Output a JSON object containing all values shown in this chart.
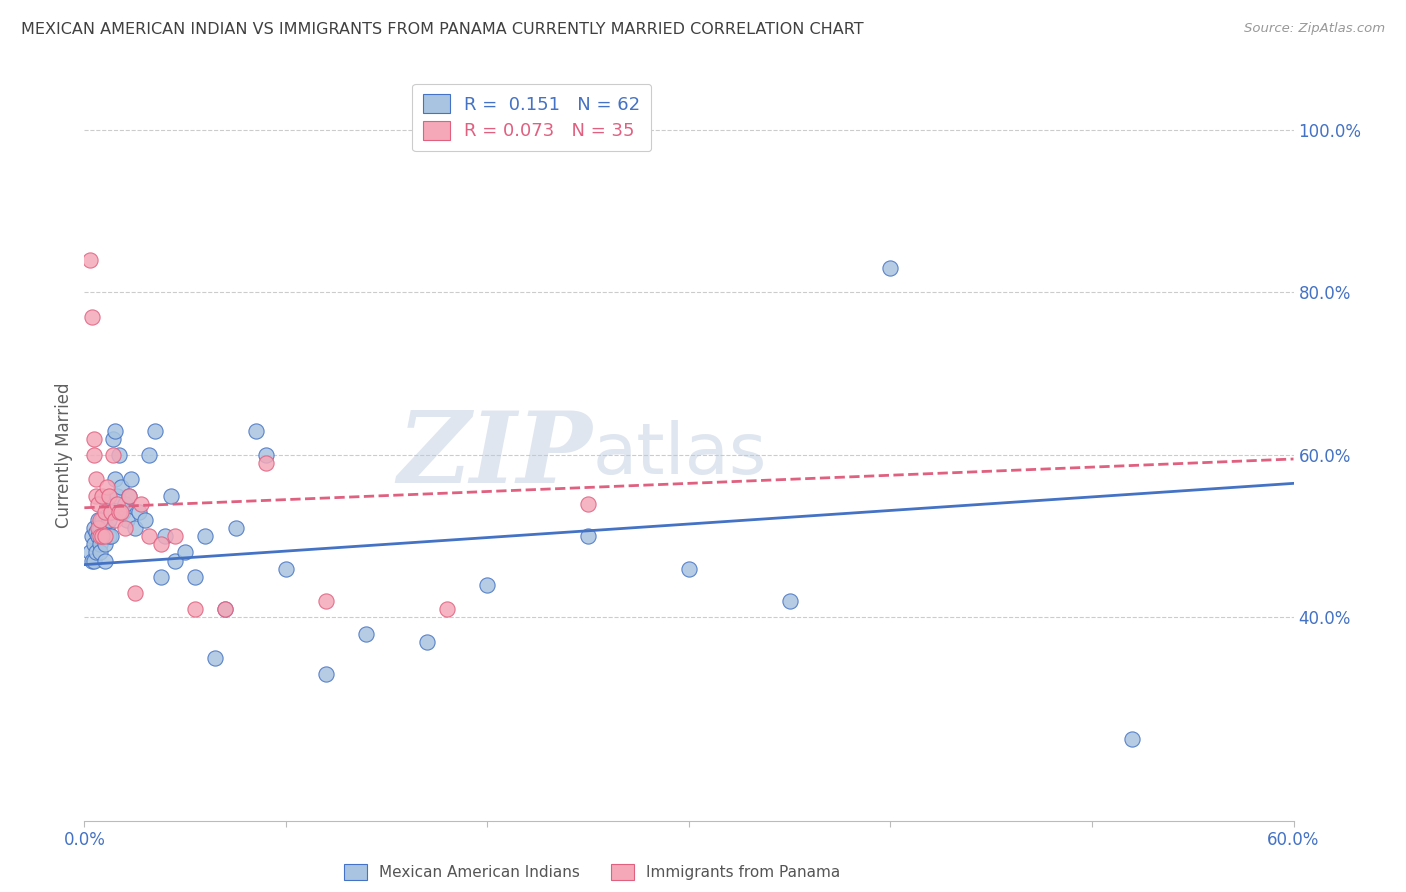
{
  "title": "MEXICAN AMERICAN INDIAN VS IMMIGRANTS FROM PANAMA CURRENTLY MARRIED CORRELATION CHART",
  "source": "Source: ZipAtlas.com",
  "ylabel": "Currently Married",
  "xlim": [
    0.0,
    0.6
  ],
  "ylim": [
    0.15,
    1.05
  ],
  "xticks": [
    0.0,
    0.1,
    0.2,
    0.3,
    0.4,
    0.5,
    0.6
  ],
  "xticklabels": [
    "0.0%",
    "",
    "",
    "",
    "",
    "",
    "60.0%"
  ],
  "yticks_right": [
    0.4,
    0.6,
    0.8,
    1.0
  ],
  "ytick_right_labels": [
    "40.0%",
    "60.0%",
    "80.0%",
    "100.0%"
  ],
  "legend_blue_r": "0.151",
  "legend_blue_n": "62",
  "legend_pink_r": "0.073",
  "legend_pink_n": "35",
  "legend_label_blue": "Mexican American Indians",
  "legend_label_pink": "Immigrants from Panama",
  "blue_color": "#a8c4e0",
  "pink_color": "#f4a8b8",
  "blue_line_color": "#4472c4",
  "pink_line_color": "#e06080",
  "watermark_zip": "ZIP",
  "watermark_atlas": "atlas",
  "background_color": "#ffffff",
  "grid_color": "#cccccc",
  "title_color": "#404040",
  "axis_color": "#4472c4",
  "blue_x": [
    0.003,
    0.004,
    0.004,
    0.005,
    0.005,
    0.005,
    0.006,
    0.006,
    0.007,
    0.007,
    0.008,
    0.008,
    0.008,
    0.009,
    0.009,
    0.01,
    0.01,
    0.01,
    0.011,
    0.011,
    0.012,
    0.012,
    0.013,
    0.013,
    0.014,
    0.015,
    0.015,
    0.016,
    0.017,
    0.018,
    0.019,
    0.02,
    0.021,
    0.022,
    0.023,
    0.025,
    0.027,
    0.03,
    0.032,
    0.035,
    0.038,
    0.04,
    0.043,
    0.045,
    0.05,
    0.055,
    0.06,
    0.065,
    0.07,
    0.075,
    0.085,
    0.09,
    0.1,
    0.12,
    0.14,
    0.17,
    0.2,
    0.25,
    0.3,
    0.35,
    0.4,
    0.52
  ],
  "blue_y": [
    0.48,
    0.5,
    0.47,
    0.49,
    0.51,
    0.47,
    0.505,
    0.48,
    0.5,
    0.52,
    0.49,
    0.51,
    0.48,
    0.5,
    0.52,
    0.505,
    0.49,
    0.47,
    0.51,
    0.54,
    0.5,
    0.52,
    0.53,
    0.5,
    0.62,
    0.63,
    0.57,
    0.55,
    0.6,
    0.56,
    0.53,
    0.54,
    0.52,
    0.55,
    0.57,
    0.51,
    0.53,
    0.52,
    0.6,
    0.63,
    0.45,
    0.5,
    0.55,
    0.47,
    0.48,
    0.45,
    0.5,
    0.35,
    0.41,
    0.51,
    0.63,
    0.6,
    0.46,
    0.33,
    0.38,
    0.37,
    0.44,
    0.5,
    0.46,
    0.42,
    0.83,
    0.25
  ],
  "pink_x": [
    0.003,
    0.004,
    0.005,
    0.005,
    0.006,
    0.006,
    0.007,
    0.007,
    0.008,
    0.008,
    0.009,
    0.009,
    0.01,
    0.01,
    0.011,
    0.012,
    0.013,
    0.014,
    0.015,
    0.016,
    0.017,
    0.018,
    0.02,
    0.022,
    0.025,
    0.028,
    0.032,
    0.038,
    0.045,
    0.055,
    0.07,
    0.09,
    0.12,
    0.18,
    0.25
  ],
  "pink_y": [
    0.84,
    0.77,
    0.62,
    0.6,
    0.57,
    0.55,
    0.54,
    0.51,
    0.52,
    0.5,
    0.5,
    0.55,
    0.53,
    0.5,
    0.56,
    0.55,
    0.53,
    0.6,
    0.52,
    0.54,
    0.53,
    0.53,
    0.51,
    0.55,
    0.43,
    0.54,
    0.5,
    0.49,
    0.5,
    0.41,
    0.41,
    0.59,
    0.42,
    0.41,
    0.54
  ],
  "blue_trend_x0": 0.0,
  "blue_trend_y0": 0.465,
  "blue_trend_x1": 0.6,
  "blue_trend_y1": 0.565,
  "pink_trend_x0": 0.0,
  "pink_trend_y0": 0.535,
  "pink_trend_x1": 0.6,
  "pink_trend_y1": 0.595
}
